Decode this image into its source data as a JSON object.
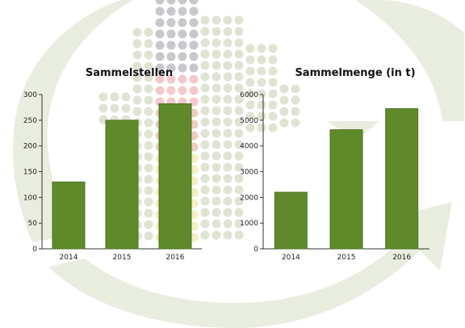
{
  "chart_data": [
    {
      "type": "bar",
      "title": "Sammelstellen",
      "categories": [
        "2014",
        "2015",
        "2016"
      ],
      "values": [
        130,
        250,
        282
      ],
      "ylim": [
        0,
        300
      ],
      "yticks": [
        "0",
        "50",
        "100",
        "150",
        "200",
        "250",
        "300"
      ],
      "grid": false,
      "legend": "none"
    },
    {
      "type": "bar",
      "title": "Sammelmenge (in t)",
      "categories": [
        "2014",
        "2015",
        "2016"
      ],
      "values": [
        2200,
        4630,
        5450
      ],
      "ylim": [
        0,
        6000
      ],
      "yticks": [
        "0",
        "1000",
        "2000",
        "3000",
        "4000",
        "5000",
        "6000"
      ],
      "grid": false,
      "legend": "none"
    }
  ],
  "colors": {
    "bar": "#5e8a2a",
    "bar_edge": "#4c7420",
    "background_arrow": "#e7ecdc",
    "background_dot": "#dfe4d2",
    "dot_grey": "#c7c7cc",
    "dot_red": "#f3c9cc",
    "dot_yellow": "#f7ecc4"
  }
}
